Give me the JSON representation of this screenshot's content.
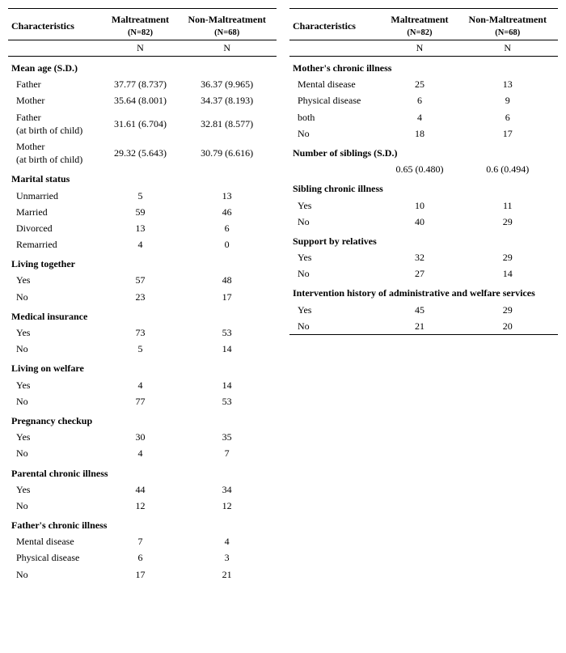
{
  "header": {
    "characteristics": "Characteristics",
    "maltreatment_label": "Maltreatment",
    "maltreatment_n": "(N=82)",
    "nonmaltreatment_label": "Non-Maltreatment",
    "nonmaltreatment_n": "(N=68)",
    "sub_n": "N"
  },
  "left": {
    "sections": [
      {
        "title": "Mean age (S.D.)",
        "rows": [
          {
            "label": "Father",
            "m": "37.77 (8.737)",
            "n": "36.37 (9.965)"
          },
          {
            "label": "Mother",
            "m": "35.64 (8.001)",
            "n": "34.37 (8.193)"
          },
          {
            "label": "Father\n(at birth of child)",
            "m": "31.61 (6.704)",
            "n": "32.81 (8.577)",
            "multi": true
          },
          {
            "label": "Mother\n(at birth of child)",
            "m": "29.32 (5.643)",
            "n": "30.79 (6.616)",
            "multi": true
          }
        ]
      },
      {
        "title": "Marital status",
        "rows": [
          {
            "label": "Unmarried",
            "m": "5",
            "n": "13"
          },
          {
            "label": "Married",
            "m": "59",
            "n": "46"
          },
          {
            "label": "Divorced",
            "m": "13",
            "n": "6"
          },
          {
            "label": "Remarried",
            "m": "4",
            "n": "0"
          }
        ]
      },
      {
        "title": "Living together",
        "rows": [
          {
            "label": "Yes",
            "m": "57",
            "n": "48"
          },
          {
            "label": "No",
            "m": "23",
            "n": "17"
          }
        ]
      },
      {
        "title": "Medical insurance",
        "rows": [
          {
            "label": "Yes",
            "m": "73",
            "n": "53"
          },
          {
            "label": "No",
            "m": "5",
            "n": "14"
          }
        ]
      },
      {
        "title": "Living on welfare",
        "rows": [
          {
            "label": "Yes",
            "m": "4",
            "n": "14"
          },
          {
            "label": "No",
            "m": "77",
            "n": "53"
          }
        ]
      },
      {
        "title": "Pregnancy checkup",
        "rows": [
          {
            "label": "Yes",
            "m": "30",
            "n": "35"
          },
          {
            "label": "No",
            "m": "4",
            "n": "7"
          }
        ]
      },
      {
        "title": "Parental chronic illness",
        "rows": [
          {
            "label": "Yes",
            "m": "44",
            "n": "34"
          },
          {
            "label": "No",
            "m": "12",
            "n": "12"
          }
        ]
      },
      {
        "title": "Father's chronic illness",
        "rows": [
          {
            "label": "Mental disease",
            "m": "7",
            "n": "4"
          },
          {
            "label": "Physical disease",
            "m": "6",
            "n": "3"
          },
          {
            "label": "No",
            "m": "17",
            "n": "21"
          }
        ]
      }
    ]
  },
  "right": {
    "sections": [
      {
        "title": "Mother's chronic illness",
        "rows": [
          {
            "label": "Mental disease",
            "m": "25",
            "n": "13"
          },
          {
            "label": "Physical disease",
            "m": "6",
            "n": "9"
          },
          {
            "label": "both",
            "m": "4",
            "n": "6"
          },
          {
            "label": "No",
            "m": "18",
            "n": "17"
          }
        ]
      },
      {
        "title": "Number of siblings (S.D.)",
        "rows": [
          {
            "label": "",
            "m": "0.65 (0.480)",
            "n": "0.6 (0.494)"
          }
        ]
      },
      {
        "title": "Sibling chronic illness",
        "rows": [
          {
            "label": "Yes",
            "m": "10",
            "n": "11"
          },
          {
            "label": "No",
            "m": "40",
            "n": "29"
          }
        ]
      },
      {
        "title": "Support by relatives",
        "rows": [
          {
            "label": "Yes",
            "m": "32",
            "n": "29"
          },
          {
            "label": "No",
            "m": "27",
            "n": "14"
          }
        ]
      },
      {
        "title": "Intervention history of administrative and welfare services",
        "rows": [
          {
            "label": "Yes",
            "m": "45",
            "n": "29"
          },
          {
            "label": "No",
            "m": "21",
            "n": "20"
          }
        ],
        "endline": true
      }
    ]
  },
  "style": {
    "font": "Times New Roman",
    "bg": "#ffffff",
    "text": "#000000",
    "rule": "#000000",
    "base_fontsize": 12,
    "small_fontsize": 10.5
  }
}
